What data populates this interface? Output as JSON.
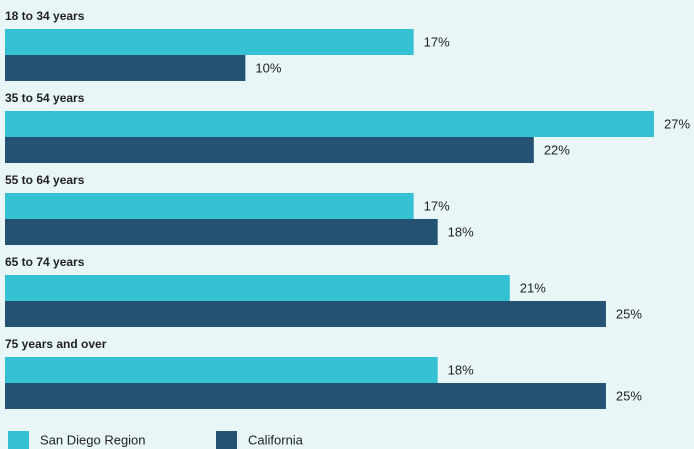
{
  "chart_data": {
    "type": "bar",
    "orientation": "horizontal",
    "categories": [
      "18 to 34 years",
      "35 to 54 years",
      "55 to 64 years",
      "65 to 74 years",
      "75 years and over"
    ],
    "series": [
      {
        "name": "San Diego Region",
        "color": "#35c1d3",
        "values": [
          17,
          27,
          17,
          21,
          18
        ],
        "value_labels": [
          "17%",
          "27%",
          "17%",
          "21%",
          "18%"
        ]
      },
      {
        "name": "California",
        "color": "#245272",
        "values": [
          10,
          22,
          18,
          25,
          25
        ],
        "value_labels": [
          "10%",
          "22%",
          "18%",
          "25%",
          "25%"
        ]
      }
    ],
    "legend": "bottom-left"
  }
}
